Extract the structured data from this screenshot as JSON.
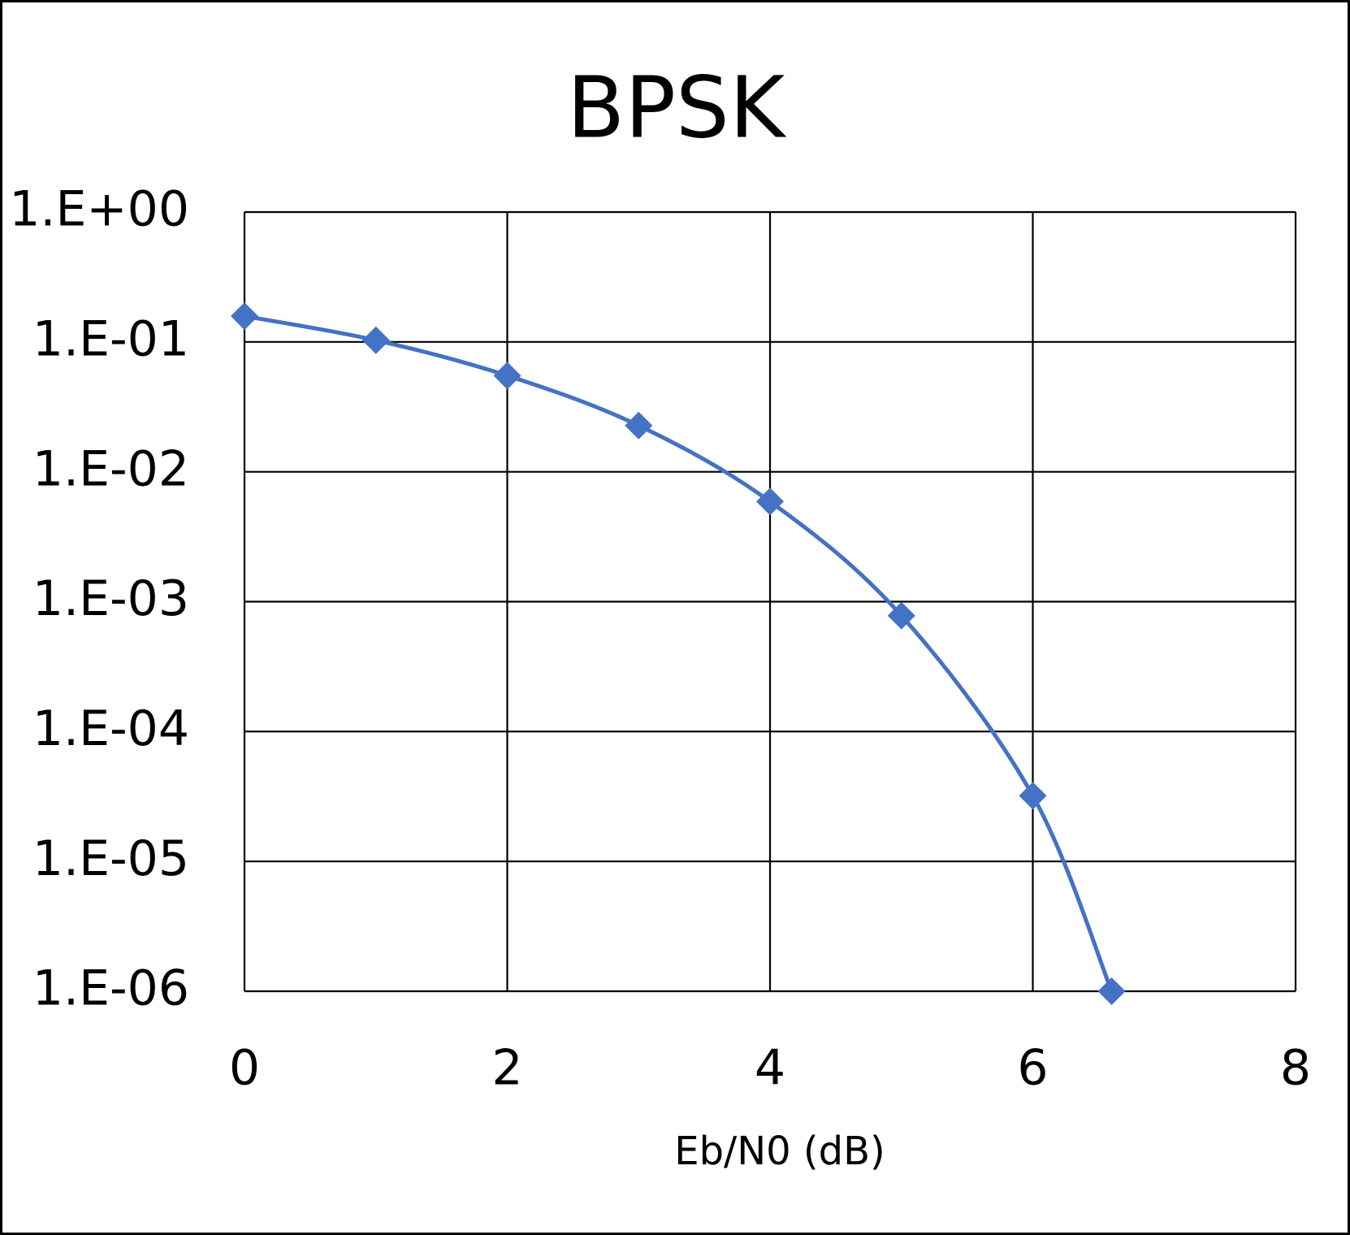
{
  "chart_data": {
    "type": "line",
    "title": "BPSK",
    "x_label": "Eb/N0 (dB)",
    "x": [
      0,
      1,
      2,
      3,
      4,
      5,
      6,
      6.6
    ],
    "series": [
      {
        "name": "BPSK",
        "color": "#4472c4",
        "marker": "diamond",
        "values": [
          0.158,
          0.103,
          0.055,
          0.0227,
          0.0059,
          0.00078,
          3.2e-05,
          1e-06
        ]
      }
    ],
    "xlim": [
      0,
      8
    ],
    "xticks": [
      0,
      2,
      4,
      6,
      8
    ],
    "ylim": [
      1e-06,
      1
    ],
    "yscale": "log",
    "yticks": [
      {
        "value": 1,
        "label": "1.E+00"
      },
      {
        "value": 0.1,
        "label": "1.E-01"
      },
      {
        "value": 0.01,
        "label": "1.E-02"
      },
      {
        "value": 0.001,
        "label": "1.E-03"
      },
      {
        "value": 0.0001,
        "label": "1.E-04"
      },
      {
        "value": 1e-05,
        "label": "1.E-05"
      },
      {
        "value": 1e-06,
        "label": "1.E-06"
      }
    ],
    "grid": true,
    "smooth": true
  }
}
